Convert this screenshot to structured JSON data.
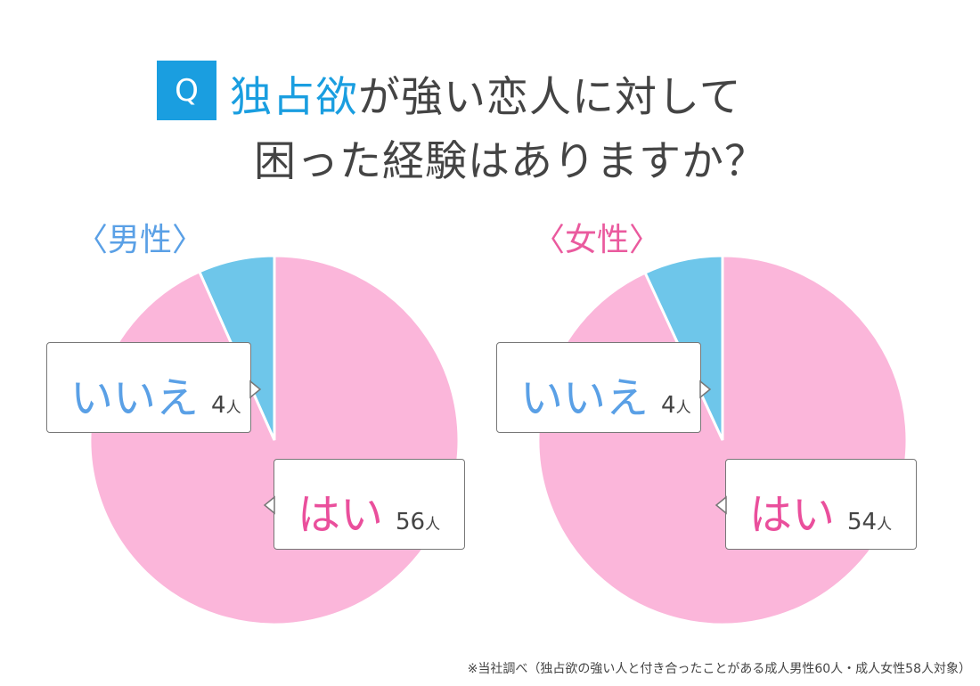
{
  "title": {
    "q_label": "Q",
    "line1_highlight": "独占欲",
    "line1_rest": "が強い恋人に対して",
    "line2": "困った経験はありますか？",
    "highlight_color": "#1a9ee0"
  },
  "chart_data": [
    {
      "type": "pie",
      "title": "〈男性〉",
      "title_color": "#5aa0e6",
      "categories": [
        "はい",
        "いいえ"
      ],
      "values": [
        56,
        4
      ],
      "unit": "人",
      "colors": [
        "#fbb6da",
        "#6ec6ea"
      ],
      "label_colors": [
        "#ea4f9c",
        "#5aa0e6"
      ]
    },
    {
      "type": "pie",
      "title": "〈女性〉",
      "title_color": "#ea5a9e",
      "categories": [
        "はい",
        "いいえ"
      ],
      "values": [
        54,
        4
      ],
      "unit": "人",
      "colors": [
        "#fbb6da",
        "#6ec6ea"
      ],
      "label_colors": [
        "#ea4f9c",
        "#5aa0e6"
      ]
    }
  ],
  "footnote": "※当社調べ（独占欲の強い人と付き合ったことがある成人男性60人・成人女性58人対象）"
}
